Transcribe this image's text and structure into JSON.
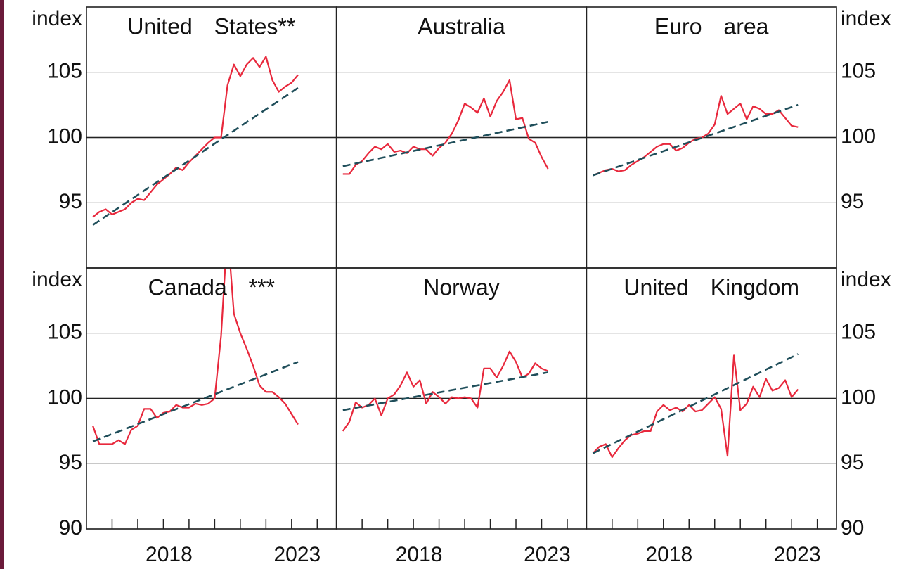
{
  "chart_data": [
    {
      "type": "line",
      "title": "United States**",
      "ylabel": "index",
      "ytick_side": "left",
      "xlim": [
        2015,
        2024.75
      ],
      "ylim": [
        90,
        110
      ],
      "yticks": [
        95,
        100,
        105
      ],
      "grid": true,
      "reference_line": 100,
      "series": [
        {
          "color": "#e8283c",
          "dashed": false,
          "x": [
            2015.25,
            2015.5,
            2015.75,
            2016,
            2016.25,
            2016.5,
            2016.75,
            2017,
            2017.25,
            2017.5,
            2017.75,
            2018,
            2018.25,
            2018.5,
            2018.75,
            2019,
            2019.25,
            2019.5,
            2019.75,
            2020,
            2020.25,
            2020.5,
            2020.75,
            2021,
            2021.25,
            2021.5,
            2021.75,
            2022,
            2022.25,
            2022.5,
            2022.75,
            2023,
            2023.25
          ],
          "values": [
            93.9,
            94.3,
            94.5,
            94.1,
            94.3,
            94.5,
            95.0,
            95.3,
            95.2,
            95.8,
            96.4,
            96.8,
            97.2,
            97.7,
            97.5,
            98.1,
            98.6,
            99.1,
            99.6,
            100.0,
            100.0,
            104.0,
            105.6,
            104.7,
            105.6,
            106.1,
            105.4,
            106.2,
            104.4,
            103.5,
            103.9,
            104.2,
            104.8
          ]
        },
        {
          "color": "#1f4e5a",
          "dashed": true,
          "x": [
            2015.25,
            2023.25
          ],
          "values": [
            93.3,
            103.8
          ]
        }
      ]
    },
    {
      "type": "line",
      "title": "Australia",
      "xlim": [
        2015,
        2024.75
      ],
      "ylim": [
        90,
        110
      ],
      "yticks": [
        95,
        100,
        105
      ],
      "grid": true,
      "reference_line": 100,
      "series": [
        {
          "color": "#e8283c",
          "dashed": false,
          "x": [
            2015.25,
            2015.5,
            2015.75,
            2016,
            2016.25,
            2016.5,
            2016.75,
            2017,
            2017.25,
            2017.5,
            2017.75,
            2018,
            2018.25,
            2018.5,
            2018.75,
            2019,
            2019.25,
            2019.5,
            2019.75,
            2020,
            2020.25,
            2020.5,
            2020.75,
            2021,
            2021.25,
            2021.5,
            2021.75,
            2022,
            2022.25,
            2022.5,
            2022.75,
            2023,
            2023.25
          ],
          "values": [
            97.2,
            97.2,
            97.9,
            98.2,
            98.8,
            99.3,
            99.1,
            99.5,
            98.9,
            99.0,
            98.8,
            99.3,
            99.1,
            99.1,
            98.6,
            99.2,
            99.6,
            100.3,
            101.3,
            102.6,
            102.3,
            101.9,
            103.0,
            101.6,
            102.8,
            103.5,
            104.4,
            101.4,
            101.5,
            99.9,
            99.6,
            98.5,
            97.6
          ]
        },
        {
          "color": "#1f4e5a",
          "dashed": true,
          "x": [
            2015.25,
            2023.25
          ],
          "values": [
            97.8,
            101.2
          ]
        }
      ]
    },
    {
      "type": "line",
      "title": "Euro area",
      "ylabel": "index",
      "ytick_side": "right",
      "xlim": [
        2015,
        2024.75
      ],
      "ylim": [
        90,
        110
      ],
      "yticks": [
        95,
        100,
        105
      ],
      "grid": true,
      "reference_line": 100,
      "series": [
        {
          "color": "#e8283c",
          "dashed": false,
          "x": [
            2015.25,
            2015.5,
            2015.75,
            2016,
            2016.25,
            2016.5,
            2016.75,
            2017,
            2017.25,
            2017.5,
            2017.75,
            2018,
            2018.25,
            2018.5,
            2018.75,
            2019,
            2019.25,
            2019.5,
            2019.75,
            2020,
            2020.25,
            2020.5,
            2020.75,
            2021,
            2021.25,
            2021.5,
            2021.75,
            2022,
            2022.25,
            2022.5,
            2022.75,
            2023,
            2023.25
          ],
          "values": [
            97.1,
            97.3,
            97.5,
            97.6,
            97.4,
            97.5,
            97.9,
            98.2,
            98.5,
            98.9,
            99.3,
            99.5,
            99.5,
            99.0,
            99.2,
            99.6,
            99.9,
            100.0,
            100.3,
            101.0,
            103.2,
            101.8,
            102.2,
            102.6,
            101.4,
            102.4,
            102.2,
            101.8,
            101.8,
            102.1,
            101.5,
            100.9,
            100.8
          ]
        },
        {
          "color": "#1f4e5a",
          "dashed": true,
          "x": [
            2015.25,
            2023.25
          ],
          "values": [
            97.1,
            102.5
          ]
        }
      ]
    },
    {
      "type": "line",
      "title": "Canada ***",
      "ylabel": "index",
      "ytick_side": "left",
      "xlim": [
        2015,
        2024.75
      ],
      "ylim": [
        90,
        110
      ],
      "yticks": [
        90,
        95,
        100,
        105
      ],
      "grid": true,
      "reference_line": 100,
      "xticks": [
        2018,
        2023
      ],
      "xminorticks": [
        2016,
        2017,
        2018,
        2019,
        2020,
        2021,
        2022,
        2023,
        2024
      ],
      "series": [
        {
          "color": "#e8283c",
          "dashed": false,
          "x": [
            2015.25,
            2015.5,
            2015.75,
            2016,
            2016.25,
            2016.5,
            2016.75,
            2017,
            2017.25,
            2017.5,
            2017.75,
            2018,
            2018.25,
            2018.5,
            2018.75,
            2019,
            2019.25,
            2019.5,
            2019.75,
            2020,
            2020.25,
            2020.5,
            2020.75,
            2021,
            2021.25,
            2021.5,
            2021.75,
            2022,
            2022.25,
            2022.5,
            2022.75,
            2023,
            2023.25
          ],
          "values": [
            97.9,
            96.5,
            96.5,
            96.5,
            96.8,
            96.5,
            97.6,
            97.9,
            99.2,
            99.2,
            98.5,
            98.9,
            99.0,
            99.5,
            99.3,
            99.3,
            99.6,
            99.5,
            99.6,
            100.0,
            104.8,
            113,
            106.5,
            105.0,
            103.8,
            102.5,
            101.0,
            100.5,
            100.5,
            100.1,
            99.6,
            98.8,
            98.0
          ]
        },
        {
          "color": "#1f4e5a",
          "dashed": true,
          "x": [
            2015.25,
            2023.25
          ],
          "values": [
            96.7,
            102.8
          ]
        }
      ]
    },
    {
      "type": "line",
      "title": "Norway",
      "xlim": [
        2015,
        2024.75
      ],
      "ylim": [
        90,
        110
      ],
      "yticks": [
        95,
        100,
        105
      ],
      "grid": true,
      "reference_line": 100,
      "xticks": [
        2018,
        2023
      ],
      "xminorticks": [
        2016,
        2017,
        2018,
        2019,
        2020,
        2021,
        2022,
        2023,
        2024
      ],
      "series": [
        {
          "color": "#e8283c",
          "dashed": false,
          "x": [
            2015.25,
            2015.5,
            2015.75,
            2016,
            2016.25,
            2016.5,
            2016.75,
            2017,
            2017.25,
            2017.5,
            2017.75,
            2018,
            2018.25,
            2018.5,
            2018.75,
            2019,
            2019.25,
            2019.5,
            2019.75,
            2020,
            2020.25,
            2020.5,
            2020.75,
            2021,
            2021.25,
            2021.5,
            2021.75,
            2022,
            2022.25,
            2022.5,
            2022.75,
            2023,
            2023.25
          ],
          "values": [
            97.5,
            98.2,
            99.7,
            99.3,
            99.5,
            100.0,
            98.7,
            100.0,
            100.3,
            101.0,
            102.0,
            100.9,
            101.4,
            99.6,
            100.5,
            100.1,
            99.6,
            100.1,
            100.0,
            100.1,
            100.0,
            99.3,
            102.3,
            102.3,
            101.6,
            102.5,
            103.6,
            102.8,
            101.6,
            101.9,
            102.7,
            102.3,
            102.1
          ]
        },
        {
          "color": "#1f4e5a",
          "dashed": true,
          "x": [
            2015.25,
            2023.25
          ],
          "values": [
            99.1,
            102.0
          ]
        }
      ]
    },
    {
      "type": "line",
      "title": "United Kingdom",
      "ylabel": "index",
      "ytick_side": "right",
      "xlim": [
        2015,
        2024.75
      ],
      "ylim": [
        90,
        110
      ],
      "yticks": [
        90,
        95,
        100,
        105
      ],
      "grid": true,
      "reference_line": 100,
      "xticks": [
        2018,
        2023
      ],
      "xminorticks": [
        2016,
        2017,
        2018,
        2019,
        2020,
        2021,
        2022,
        2023,
        2024
      ],
      "series": [
        {
          "color": "#e8283c",
          "dashed": false,
          "x": [
            2015.25,
            2015.5,
            2015.75,
            2016,
            2016.25,
            2016.5,
            2016.75,
            2017,
            2017.25,
            2017.5,
            2017.75,
            2018,
            2018.25,
            2018.5,
            2018.75,
            2019,
            2019.25,
            2019.5,
            2019.75,
            2020,
            2020.25,
            2020.5,
            2020.75,
            2021,
            2021.25,
            2021.5,
            2021.75,
            2022,
            2022.25,
            2022.5,
            2022.75,
            2023,
            2023.25
          ],
          "values": [
            95.8,
            96.3,
            96.5,
            95.5,
            96.2,
            96.8,
            97.2,
            97.3,
            97.5,
            97.5,
            99.0,
            99.5,
            99.1,
            99.3,
            99.0,
            99.5,
            99.0,
            99.1,
            99.6,
            100.1,
            99.2,
            95.6,
            103.3,
            99.1,
            99.6,
            100.9,
            100.1,
            101.5,
            100.6,
            100.8,
            101.4,
            100.1,
            100.7
          ]
        },
        {
          "color": "#1f4e5a",
          "dashed": true,
          "x": [
            2015.25,
            2023.25
          ],
          "values": [
            95.8,
            103.4
          ]
        }
      ]
    }
  ]
}
